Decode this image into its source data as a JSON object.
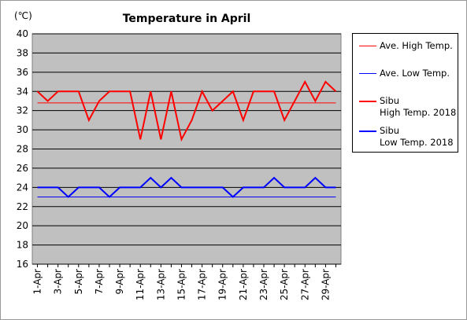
{
  "chart_data": {
    "type": "line",
    "title": "Temperature in April",
    "y_label": "(℃)",
    "categories": [
      "1-Apr",
      null,
      "3-Apr",
      null,
      "5-Apr",
      null,
      "7-Apr",
      null,
      "9-Apr",
      null,
      "11-Apr",
      null,
      "13-Apr",
      null,
      "15-Apr",
      null,
      "17-Apr",
      null,
      "19-Apr",
      null,
      "21-Apr",
      null,
      "23-Apr",
      null,
      "25-Apr",
      null,
      "27-Apr",
      null,
      "29-Apr",
      null
    ],
    "ylim": [
      16,
      40
    ],
    "yticks": [
      16,
      18,
      20,
      22,
      24,
      26,
      28,
      30,
      32,
      34,
      36,
      38,
      40
    ],
    "grid": true,
    "series": [
      {
        "name": "Ave. High Temp.",
        "color": "#ff0000",
        "width": 1,
        "values": [
          32.8,
          32.8,
          32.8,
          32.8,
          32.8,
          32.8,
          32.8,
          32.8,
          32.8,
          32.8,
          32.8,
          32.8,
          32.8,
          32.8,
          32.8,
          32.8,
          32.8,
          32.8,
          32.8,
          32.8,
          32.8,
          32.8,
          32.8,
          32.8,
          32.8,
          32.8,
          32.8,
          32.8,
          32.8,
          32.8
        ]
      },
      {
        "name": "Ave. Low Temp.",
        "color": "#0000ff",
        "width": 1,
        "values": [
          23,
          23,
          23,
          23,
          23,
          23,
          23,
          23,
          23,
          23,
          23,
          23,
          23,
          23,
          23,
          23,
          23,
          23,
          23,
          23,
          23,
          23,
          23,
          23,
          23,
          23,
          23,
          23,
          23,
          23
        ]
      },
      {
        "name": "Sibu\nHigh Temp. 2018",
        "color": "#ff0000",
        "width": 2,
        "values": [
          34,
          33,
          34,
          34,
          34,
          31,
          33,
          34,
          34,
          34,
          29,
          34,
          29,
          34,
          29,
          31,
          34,
          32,
          33,
          34,
          31,
          34,
          34,
          34,
          31,
          33,
          35,
          33,
          35,
          34
        ]
      },
      {
        "name": "Sibu\nLow Temp. 2018",
        "color": "#0000ff",
        "width": 2,
        "values": [
          24,
          24,
          24,
          23,
          24,
          24,
          24,
          23,
          24,
          24,
          24,
          25,
          24,
          25,
          24,
          24,
          24,
          24,
          24,
          23,
          24,
          24,
          24,
          25,
          24,
          24,
          24,
          25,
          24,
          24
        ]
      }
    ]
  }
}
